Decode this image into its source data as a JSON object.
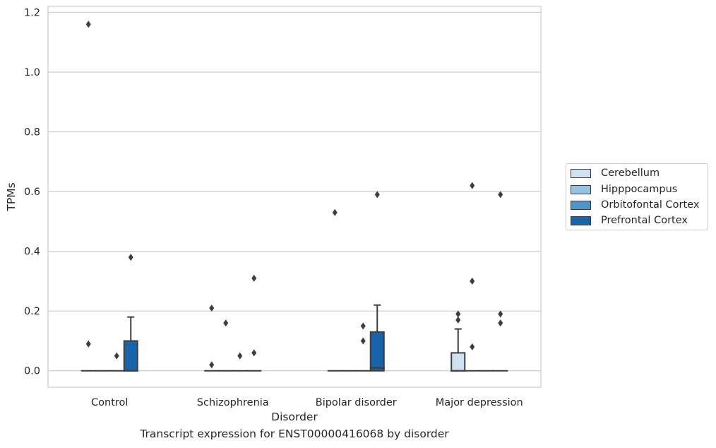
{
  "caption": "Transcript expression for ENST00000416068 by disorder",
  "chart_data": {
    "type": "box",
    "xlabel": "Disorder",
    "ylabel": "TPMs",
    "ylim": [
      -0.055,
      1.22
    ],
    "yticks": [
      "0.0",
      "0.2",
      "0.4",
      "0.6",
      "0.8",
      "1.0",
      "1.2"
    ],
    "ytick_values": [
      0,
      0.2,
      0.4,
      0.6,
      0.8,
      1.0,
      1.2
    ],
    "grid": "horizontal",
    "legend_position": "right",
    "categories": [
      "Control",
      "Schizophrenia",
      "Bipolar disorder",
      "Major depression"
    ],
    "series": [
      {
        "name": "Cerebellum",
        "color": "#d0e1f2",
        "boxes": [
          {
            "q1": 0,
            "median": 0,
            "q3": 0,
            "whislo": 0,
            "whishi": 0,
            "fliers": [
              1.16,
              0.09
            ]
          },
          {
            "q1": 0,
            "median": 0,
            "q3": 0,
            "whislo": 0,
            "whishi": 0,
            "fliers": [
              0.21,
              0.02
            ]
          },
          {
            "q1": 0,
            "median": 0,
            "q3": 0,
            "whislo": 0,
            "whishi": 0,
            "fliers": [
              0.53
            ]
          },
          {
            "q1": 0,
            "median": 0,
            "q3": 0.06,
            "whislo": 0,
            "whishi": 0.14,
            "fliers": [
              0.19,
              0.17
            ]
          }
        ]
      },
      {
        "name": "Hipppocampus",
        "color": "#94c4df",
        "boxes": [
          {
            "q1": 0,
            "median": 0,
            "q3": 0,
            "whislo": 0,
            "whishi": 0,
            "fliers": []
          },
          {
            "q1": 0,
            "median": 0,
            "q3": 0,
            "whislo": 0,
            "whishi": 0,
            "fliers": [
              0.16
            ]
          },
          {
            "q1": 0,
            "median": 0,
            "q3": 0,
            "whislo": 0,
            "whishi": 0,
            "fliers": []
          },
          {
            "q1": 0,
            "median": 0,
            "q3": 0,
            "whislo": 0,
            "whishi": 0,
            "fliers": [
              0.62,
              0.3,
              0.08
            ]
          }
        ]
      },
      {
        "name": "Orbitofontal Cortex",
        "color": "#4a98c9",
        "boxes": [
          {
            "q1": 0,
            "median": 0,
            "q3": 0,
            "whislo": 0,
            "whishi": 0,
            "fliers": [
              0.05
            ]
          },
          {
            "q1": 0,
            "median": 0,
            "q3": 0,
            "whislo": 0,
            "whishi": 0,
            "fliers": [
              0.05
            ]
          },
          {
            "q1": 0,
            "median": 0,
            "q3": 0,
            "whislo": 0,
            "whishi": 0,
            "fliers": [
              0.15,
              0.1
            ]
          },
          {
            "q1": 0,
            "median": 0,
            "q3": 0,
            "whislo": 0,
            "whishi": 0,
            "fliers": []
          }
        ]
      },
      {
        "name": "Prefrontal Cortex",
        "color": "#1764ab",
        "boxes": [
          {
            "q1": 0,
            "median": 0,
            "q3": 0.1,
            "whislo": 0,
            "whishi": 0.18,
            "fliers": [
              0.38
            ]
          },
          {
            "q1": 0,
            "median": 0,
            "q3": 0,
            "whislo": 0,
            "whishi": 0,
            "fliers": [
              0.31,
              0.06
            ]
          },
          {
            "q1": 0,
            "median": 0.01,
            "q3": 0.13,
            "whislo": 0,
            "whishi": 0.22,
            "fliers": [
              0.59
            ]
          },
          {
            "q1": 0,
            "median": 0,
            "q3": 0,
            "whislo": 0,
            "whishi": 0,
            "fliers": [
              0.59,
              0.19,
              0.16
            ]
          }
        ]
      }
    ]
  }
}
